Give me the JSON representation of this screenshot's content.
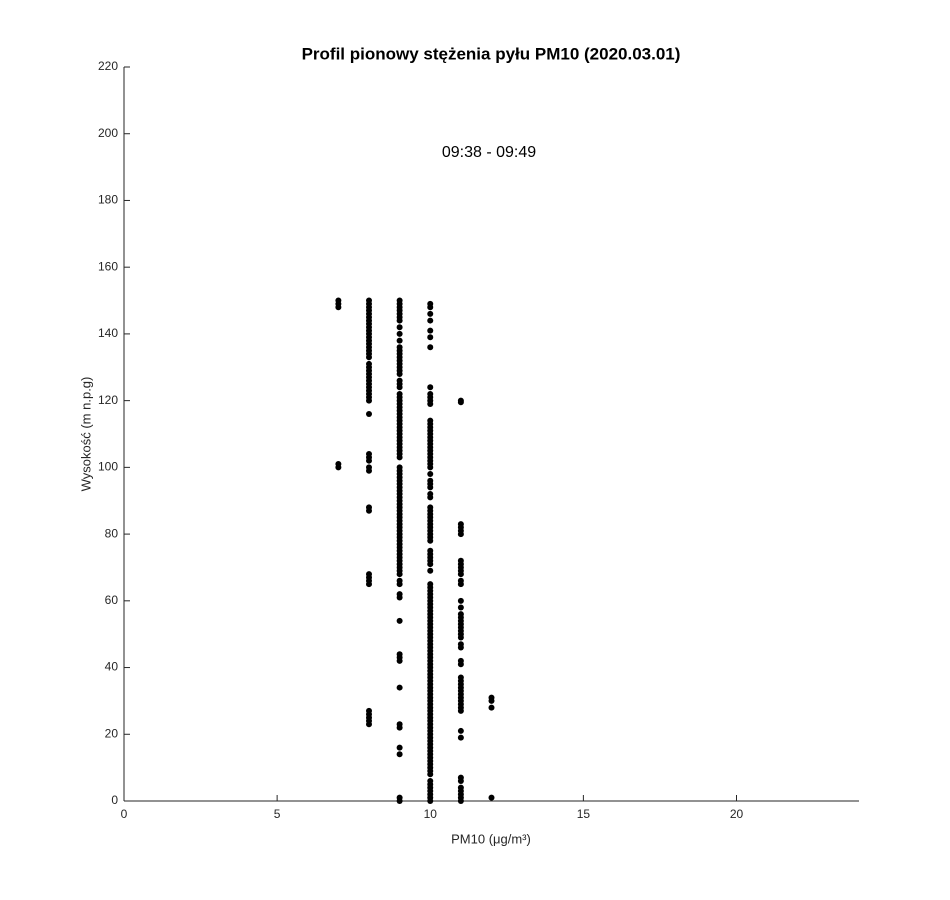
{
  "chart_data": {
    "type": "scatter",
    "title": "Profil pionowy stężenia pyłu PM10 (2020.03.01)",
    "annotation": "09:38 - 09:49",
    "x_label": "PM10 (μg/m³)",
    "y_label": "Wysokość (m n.p.g)",
    "color": "#000000",
    "xlim": [
      0,
      24
    ],
    "ylim": [
      0,
      220
    ],
    "xticks": [
      0,
      5,
      10,
      15,
      20
    ],
    "yticks": [
      0,
      20,
      40,
      60,
      80,
      100,
      120,
      140,
      160,
      180,
      200,
      220
    ],
    "grid": false,
    "points": [
      [
        7,
        150
      ],
      [
        7,
        149
      ],
      [
        7,
        148
      ],
      [
        7,
        101
      ],
      [
        7,
        100
      ],
      [
        8,
        150
      ],
      [
        8,
        149
      ],
      [
        8,
        148
      ],
      [
        8,
        147
      ],
      [
        8,
        146
      ],
      [
        8,
        145
      ],
      [
        8,
        144
      ],
      [
        8,
        143
      ],
      [
        8,
        142
      ],
      [
        8,
        141
      ],
      [
        8,
        140
      ],
      [
        8,
        139
      ],
      [
        8,
        138
      ],
      [
        8,
        137
      ],
      [
        8,
        136
      ],
      [
        8,
        135
      ],
      [
        8,
        134
      ],
      [
        8,
        133
      ],
      [
        8,
        131
      ],
      [
        8,
        130
      ],
      [
        8,
        129
      ],
      [
        8,
        128
      ],
      [
        8,
        127
      ],
      [
        8,
        126
      ],
      [
        8,
        125
      ],
      [
        8,
        124
      ],
      [
        8,
        123
      ],
      [
        8,
        122
      ],
      [
        8,
        121
      ],
      [
        8,
        120
      ],
      [
        8,
        116
      ],
      [
        8,
        104
      ],
      [
        8,
        103
      ],
      [
        8,
        102
      ],
      [
        8,
        100
      ],
      [
        8,
        99
      ],
      [
        8,
        88
      ],
      [
        8,
        87
      ],
      [
        8,
        68
      ],
      [
        8,
        67
      ],
      [
        8,
        66
      ],
      [
        8,
        65
      ],
      [
        8,
        27
      ],
      [
        8,
        26
      ],
      [
        8,
        25
      ],
      [
        8,
        24
      ],
      [
        8,
        23
      ],
      [
        9,
        150
      ],
      [
        9,
        149
      ],
      [
        9,
        148
      ],
      [
        9,
        147
      ],
      [
        9,
        146
      ],
      [
        9,
        145
      ],
      [
        9,
        144
      ],
      [
        9,
        142
      ],
      [
        9,
        140
      ],
      [
        9,
        138
      ],
      [
        9,
        136
      ],
      [
        9,
        135
      ],
      [
        9,
        134
      ],
      [
        9,
        133
      ],
      [
        9,
        132
      ],
      [
        9,
        131
      ],
      [
        9,
        130
      ],
      [
        9,
        129
      ],
      [
        9,
        128
      ],
      [
        9,
        126
      ],
      [
        9,
        125
      ],
      [
        9,
        124
      ],
      [
        9,
        122
      ],
      [
        9,
        121
      ],
      [
        9,
        120
      ],
      [
        9,
        119
      ],
      [
        9,
        118
      ],
      [
        9,
        117
      ],
      [
        9,
        116
      ],
      [
        9,
        115
      ],
      [
        9,
        114
      ],
      [
        9,
        113
      ],
      [
        9,
        112
      ],
      [
        9,
        111
      ],
      [
        9,
        110
      ],
      [
        9,
        109
      ],
      [
        9,
        108
      ],
      [
        9,
        107
      ],
      [
        9,
        106
      ],
      [
        9,
        105
      ],
      [
        9,
        104
      ],
      [
        9,
        103
      ],
      [
        9,
        100
      ],
      [
        9,
        99
      ],
      [
        9,
        98
      ],
      [
        9,
        97
      ],
      [
        9,
        96
      ],
      [
        9,
        95
      ],
      [
        9,
        94
      ],
      [
        9,
        93
      ],
      [
        9,
        92
      ],
      [
        9,
        91
      ],
      [
        9,
        90
      ],
      [
        9,
        89
      ],
      [
        9,
        88
      ],
      [
        9,
        87
      ],
      [
        9,
        86
      ],
      [
        9,
        85
      ],
      [
        9,
        84
      ],
      [
        9,
        83
      ],
      [
        9,
        82
      ],
      [
        9,
        81
      ],
      [
        9,
        80
      ],
      [
        9,
        79
      ],
      [
        9,
        78
      ],
      [
        9,
        77
      ],
      [
        9,
        76
      ],
      [
        9,
        75
      ],
      [
        9,
        74
      ],
      [
        9,
        73
      ],
      [
        9,
        72
      ],
      [
        9,
        71
      ],
      [
        9,
        70
      ],
      [
        9,
        69
      ],
      [
        9,
        68
      ],
      [
        9,
        66
      ],
      [
        9,
        65
      ],
      [
        9,
        62
      ],
      [
        9,
        61
      ],
      [
        9,
        54
      ],
      [
        9,
        44
      ],
      [
        9,
        43
      ],
      [
        9,
        42
      ],
      [
        9,
        34
      ],
      [
        9,
        23
      ],
      [
        9,
        22
      ],
      [
        9,
        16
      ],
      [
        9,
        14
      ],
      [
        9,
        1
      ],
      [
        9,
        0
      ],
      [
        10,
        149
      ],
      [
        10,
        148
      ],
      [
        10,
        146
      ],
      [
        10,
        144
      ],
      [
        10,
        141
      ],
      [
        10,
        139
      ],
      [
        10,
        136
      ],
      [
        10,
        124
      ],
      [
        10,
        122
      ],
      [
        10,
        121
      ],
      [
        10,
        120
      ],
      [
        10,
        119
      ],
      [
        10,
        114
      ],
      [
        10,
        113
      ],
      [
        10,
        112
      ],
      [
        10,
        111
      ],
      [
        10,
        110
      ],
      [
        10,
        109
      ],
      [
        10,
        108
      ],
      [
        10,
        107
      ],
      [
        10,
        106
      ],
      [
        10,
        105
      ],
      [
        10,
        104
      ],
      [
        10,
        103
      ],
      [
        10,
        102
      ],
      [
        10,
        101
      ],
      [
        10,
        100
      ],
      [
        10,
        98
      ],
      [
        10,
        96
      ],
      [
        10,
        95
      ],
      [
        10,
        94
      ],
      [
        10,
        92
      ],
      [
        10,
        91
      ],
      [
        10,
        88
      ],
      [
        10,
        87
      ],
      [
        10,
        86
      ],
      [
        10,
        85
      ],
      [
        10,
        84
      ],
      [
        10,
        83
      ],
      [
        10,
        82
      ],
      [
        10,
        81
      ],
      [
        10,
        80
      ],
      [
        10,
        79
      ],
      [
        10,
        78
      ],
      [
        10,
        75
      ],
      [
        10,
        74
      ],
      [
        10,
        73
      ],
      [
        10,
        72
      ],
      [
        10,
        71
      ],
      [
        10,
        69
      ],
      [
        10,
        65
      ],
      [
        10,
        64
      ],
      [
        10,
        63
      ],
      [
        10,
        62
      ],
      [
        10,
        61
      ],
      [
        10,
        60
      ],
      [
        10,
        59
      ],
      [
        10,
        58
      ],
      [
        10,
        57
      ],
      [
        10,
        56
      ],
      [
        10,
        55
      ],
      [
        10,
        54
      ],
      [
        10,
        53
      ],
      [
        10,
        52
      ],
      [
        10,
        51
      ],
      [
        10,
        50
      ],
      [
        10,
        49
      ],
      [
        10,
        48
      ],
      [
        10,
        47
      ],
      [
        10,
        46
      ],
      [
        10,
        45
      ],
      [
        10,
        44
      ],
      [
        10,
        43
      ],
      [
        10,
        42
      ],
      [
        10,
        41
      ],
      [
        10,
        40
      ],
      [
        10,
        39
      ],
      [
        10,
        38
      ],
      [
        10,
        37
      ],
      [
        10,
        36
      ],
      [
        10,
        35
      ],
      [
        10,
        34
      ],
      [
        10,
        33
      ],
      [
        10,
        32
      ],
      [
        10,
        31
      ],
      [
        10,
        30
      ],
      [
        10,
        29
      ],
      [
        10,
        28
      ],
      [
        10,
        27
      ],
      [
        10,
        26
      ],
      [
        10,
        25
      ],
      [
        10,
        24
      ],
      [
        10,
        23
      ],
      [
        10,
        22
      ],
      [
        10,
        21
      ],
      [
        10,
        20
      ],
      [
        10,
        19
      ],
      [
        10,
        18
      ],
      [
        10,
        17
      ],
      [
        10,
        16
      ],
      [
        10,
        15
      ],
      [
        10,
        14
      ],
      [
        10,
        13
      ],
      [
        10,
        12
      ],
      [
        10,
        11
      ],
      [
        10,
        10
      ],
      [
        10,
        9
      ],
      [
        10,
        8
      ],
      [
        10,
        6
      ],
      [
        10,
        5
      ],
      [
        10,
        4
      ],
      [
        10,
        3
      ],
      [
        10,
        2
      ],
      [
        10,
        1
      ],
      [
        10,
        0
      ],
      [
        11,
        120
      ],
      [
        11,
        119.5
      ],
      [
        11,
        83
      ],
      [
        11,
        82
      ],
      [
        11,
        81
      ],
      [
        11,
        80
      ],
      [
        11,
        72
      ],
      [
        11,
        71
      ],
      [
        11,
        70
      ],
      [
        11,
        69
      ],
      [
        11,
        68
      ],
      [
        11,
        66
      ],
      [
        11,
        65
      ],
      [
        11,
        60
      ],
      [
        11,
        58
      ],
      [
        11,
        56
      ],
      [
        11,
        55
      ],
      [
        11,
        54
      ],
      [
        11,
        53
      ],
      [
        11,
        52
      ],
      [
        11,
        51
      ],
      [
        11,
        50
      ],
      [
        11,
        49
      ],
      [
        11,
        47
      ],
      [
        11,
        46
      ],
      [
        11,
        42
      ],
      [
        11,
        41
      ],
      [
        11,
        37
      ],
      [
        11,
        36
      ],
      [
        11,
        35
      ],
      [
        11,
        34
      ],
      [
        11,
        33
      ],
      [
        11,
        32
      ],
      [
        11,
        31
      ],
      [
        11,
        30
      ],
      [
        11,
        29
      ],
      [
        11,
        28
      ],
      [
        11,
        27
      ],
      [
        11,
        21
      ],
      [
        11,
        19
      ],
      [
        11,
        7
      ],
      [
        11,
        6
      ],
      [
        11,
        4
      ],
      [
        11,
        3
      ],
      [
        11,
        2
      ],
      [
        11,
        1
      ],
      [
        11,
        0
      ],
      [
        12,
        31
      ],
      [
        12,
        30
      ],
      [
        12,
        28
      ],
      [
        12,
        1
      ]
    ]
  }
}
